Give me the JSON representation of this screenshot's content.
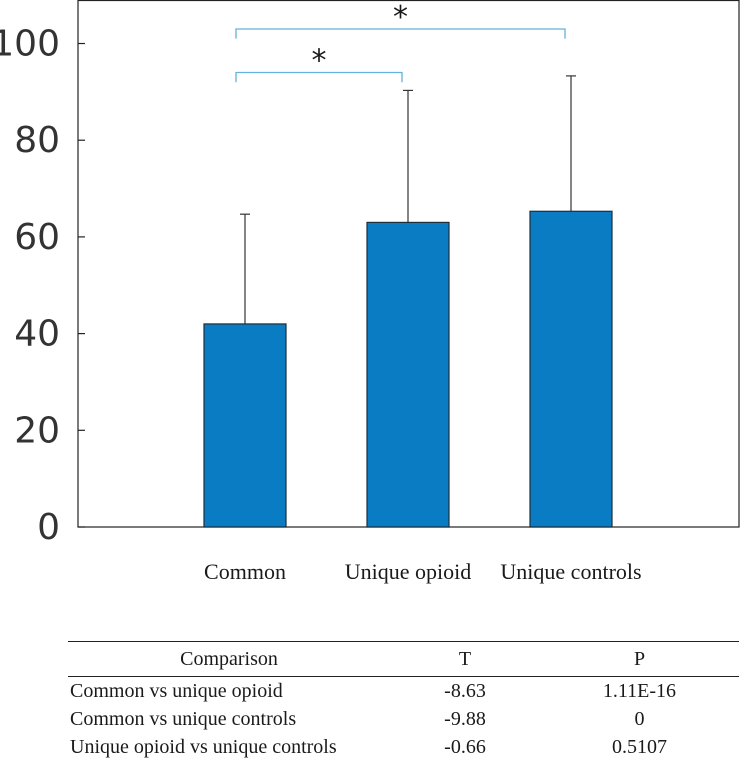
{
  "chart_data": {
    "type": "bar",
    "categories": [
      "Common",
      "Unique opioid",
      "Unique controls"
    ],
    "values": [
      42,
      63,
      65.3
    ],
    "error_upper": [
      64.7,
      90.3,
      93.3
    ],
    "ylim": [
      0,
      109
    ],
    "yticks": [
      0,
      20,
      40,
      60,
      80,
      100
    ],
    "ytick_labels": [
      "0",
      "20",
      "40",
      "60",
      "80",
      "100"
    ],
    "title": "",
    "xlabel": "",
    "ylabel": "",
    "significance": [
      {
        "from": 0,
        "to": 1,
        "level": 94,
        "drop": 2.0,
        "label": "*"
      },
      {
        "from": 0,
        "to": 2,
        "level": 103,
        "drop": 2.0,
        "label": "*"
      }
    ],
    "colors": {
      "bar": "#0a7cc4",
      "bar_edge": "#1c2e3c",
      "bracket": "#63b1dd",
      "axis": "#222222"
    }
  },
  "table": {
    "headers": {
      "comparison": "Comparison",
      "t": "T",
      "p": "P"
    },
    "rows": [
      {
        "comparison": "Common vs unique opioid",
        "t": "-8.63",
        "p": "1.11E-16"
      },
      {
        "comparison": "Common vs unique controls",
        "t": "-9.88",
        "p": "0"
      },
      {
        "comparison": "Unique opioid vs unique controls",
        "t": "-0.66",
        "p": "0.5107"
      }
    ]
  }
}
